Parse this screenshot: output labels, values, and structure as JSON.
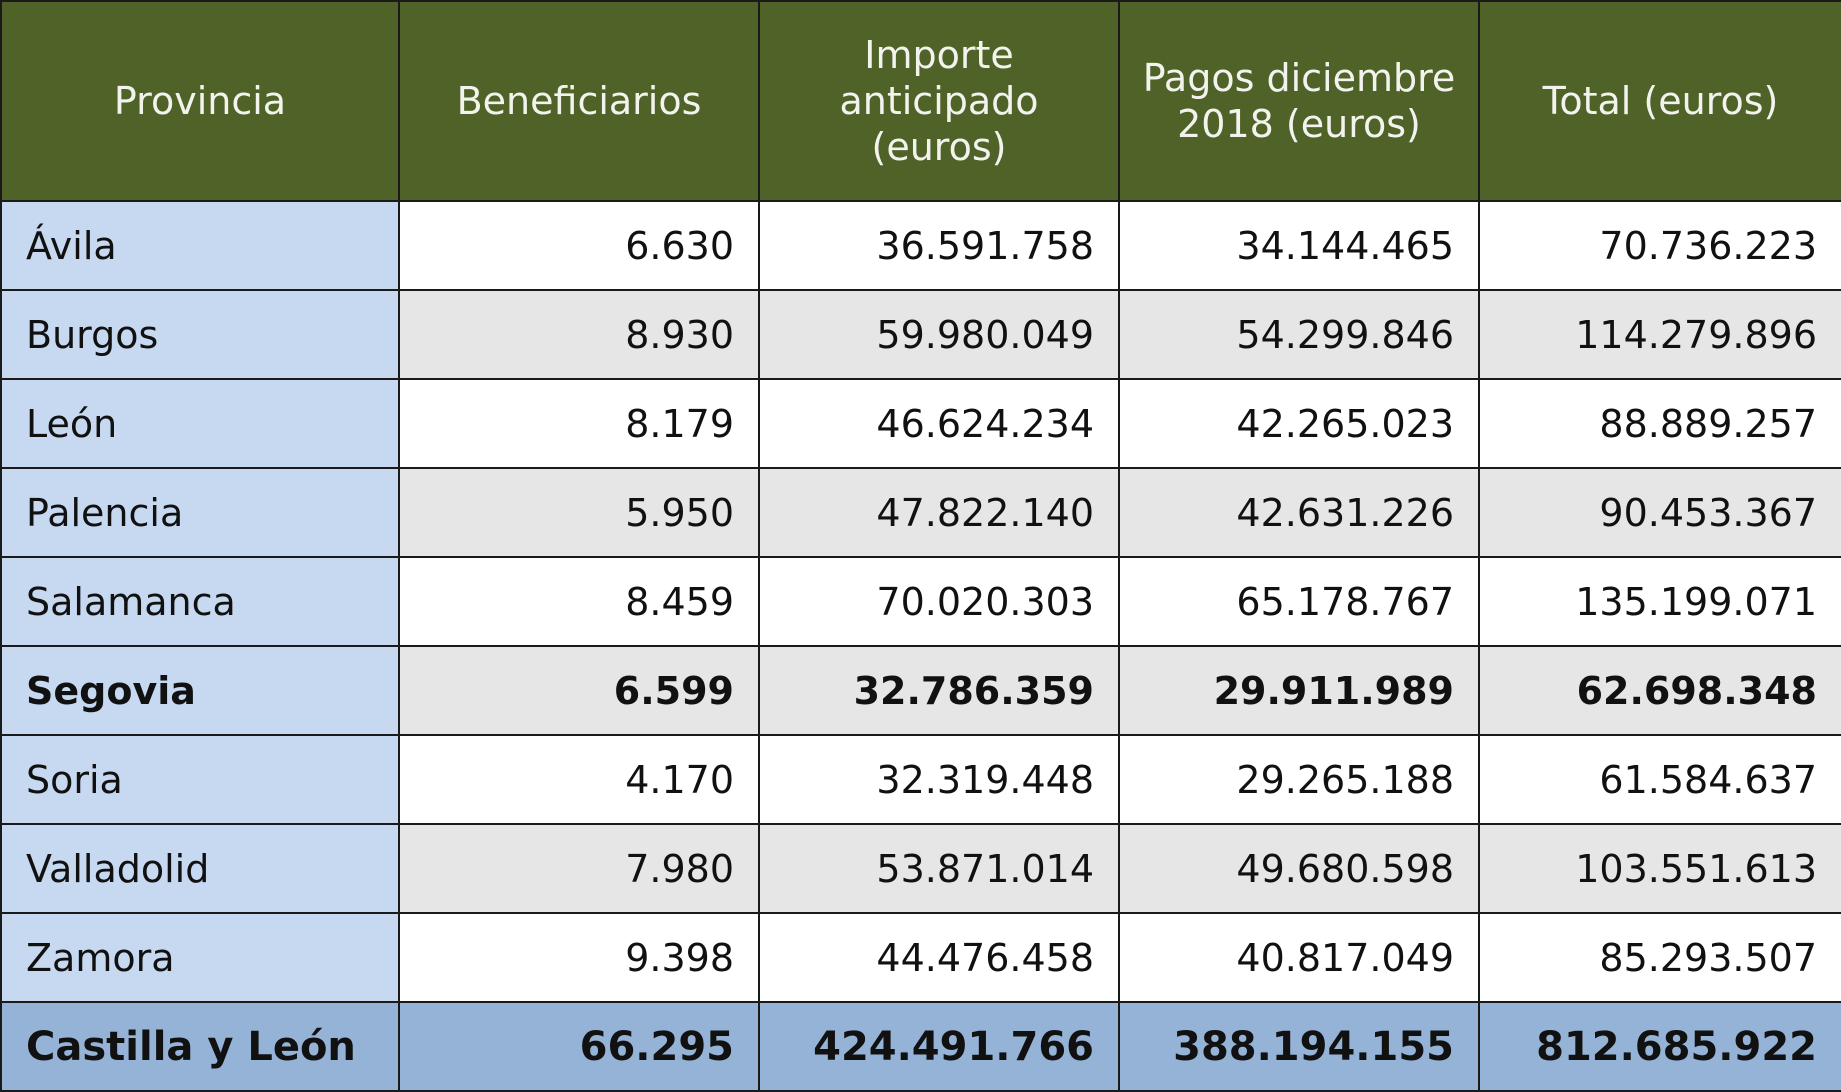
{
  "chart_data": {
    "type": "table",
    "columns": [
      "Provincia",
      "Beneficiarios",
      "Importe anticipado (euros)",
      "Pagos diciembre 2018 (euros)",
      "Total (euros)"
    ],
    "rows": [
      {
        "provincia": "Ávila",
        "cells": [
          "6.630",
          "36.591.758",
          "34.144.465",
          "70.736.223"
        ],
        "bold": false
      },
      {
        "provincia": "Burgos",
        "cells": [
          "8.930",
          "59.980.049",
          "54.299.846",
          "114.279.896"
        ],
        "bold": false
      },
      {
        "provincia": "León",
        "cells": [
          "8.179",
          "46.624.234",
          "42.265.023",
          "88.889.257"
        ],
        "bold": false
      },
      {
        "provincia": "Palencia",
        "cells": [
          "5.950",
          "47.822.140",
          "42.631.226",
          "90.453.367"
        ],
        "bold": false
      },
      {
        "provincia": "Salamanca",
        "cells": [
          "8.459",
          "70.020.303",
          "65.178.767",
          "135.199.071"
        ],
        "bold": false
      },
      {
        "provincia": "Segovia",
        "cells": [
          "6.599",
          "32.786.359",
          "29.911.989",
          "62.698.348"
        ],
        "bold": true
      },
      {
        "provincia": "Soria",
        "cells": [
          "4.170",
          "32.319.448",
          "29.265.188",
          "61.584.637"
        ],
        "bold": false
      },
      {
        "provincia": "Valladolid",
        "cells": [
          "7.980",
          "53.871.014",
          "49.680.598",
          "103.551.613"
        ],
        "bold": false
      },
      {
        "provincia": "Zamora",
        "cells": [
          "9.398",
          "44.476.458",
          "40.817.049",
          "85.293.507"
        ],
        "bold": false
      }
    ],
    "total": {
      "provincia": "Castilla y León",
      "cells": [
        "66.295",
        "424.491.766",
        "388.194.155",
        "812.685.922"
      ]
    }
  },
  "colors": {
    "header_bg": "#4f6228",
    "header_text": "#f3f3ee",
    "province_bg": "#c6d9f1",
    "row_alt_bg": "#e6e6e6",
    "total_bg": "#95b3d7"
  }
}
